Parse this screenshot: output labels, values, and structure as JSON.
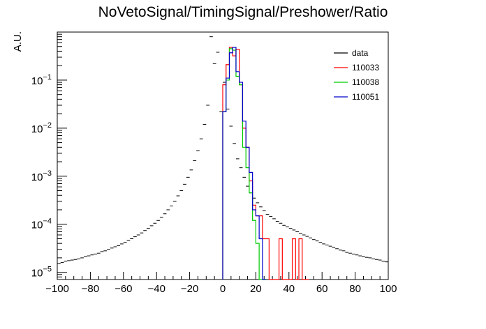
{
  "chart_data": {
    "type": "histogram-step",
    "title": "NoVetoSignal/TimingSignal/Preshower/Ratio",
    "ylabel": "A.U.",
    "xlabel": "",
    "xlim": [
      -100,
      100
    ],
    "ylim_log10": [
      -5.15,
      0.0
    ],
    "yscale": "log",
    "grid": false,
    "legend_placement": "top-right",
    "x_tick_labels": [
      "−100",
      "−80",
      "−60",
      "−40",
      "−20",
      "0",
      "20",
      "40",
      "60",
      "80",
      "100"
    ],
    "y_tick_labels": [
      {
        "base": "10",
        "exp": "−1"
      },
      {
        "base": "10",
        "exp": "−2"
      },
      {
        "base": "10",
        "exp": "−3"
      },
      {
        "base": "10",
        "exp": "−4"
      },
      {
        "base": "10",
        "exp": "−5"
      }
    ],
    "bin_width": 2,
    "series": [
      {
        "name": "data",
        "style": "points-with-xerror",
        "color": "#000000",
        "x": [
          -99,
          -97,
          -95,
          -93,
          -91,
          -89,
          -87,
          -85,
          -83,
          -81,
          -79,
          -77,
          -75,
          -73,
          -71,
          -69,
          -67,
          -65,
          -63,
          -61,
          -59,
          -57,
          -55,
          -53,
          -51,
          -49,
          -47,
          -45,
          -43,
          -41,
          -39,
          -37,
          -35,
          -33,
          -31,
          -29,
          -27,
          -25,
          -23,
          -21,
          -19,
          -17,
          -15,
          -13,
          -11,
          -9,
          -7,
          -5,
          -3,
          -1,
          1,
          3,
          5,
          7,
          9,
          11,
          13,
          15,
          17,
          19,
          21,
          23,
          25,
          27,
          29,
          31,
          33,
          35,
          37,
          39,
          41,
          43,
          45,
          47,
          49,
          51,
          53,
          55,
          57,
          59,
          61,
          63,
          65,
          67,
          69,
          71,
          73,
          75,
          77,
          79,
          81,
          83,
          85,
          87,
          89,
          91,
          93,
          95,
          97,
          99
        ],
        "y": [
          1.5e-05,
          1.6e-05,
          1.7e-05,
          1.75e-05,
          1.8e-05,
          1.85e-05,
          1.9e-05,
          2e-05,
          2.1e-05,
          2.2e-05,
          2.3e-05,
          2.4e-05,
          2.5e-05,
          2.7e-05,
          2.8e-05,
          3e-05,
          3.2e-05,
          3.4e-05,
          3.6e-05,
          3.9e-05,
          4.2e-05,
          4.6e-05,
          5e-05,
          5.5e-05,
          6e-05,
          6.6e-05,
          7.4e-05,
          8.2e-05,
          9.3e-05,
          0.000105,
          0.00012,
          0.00014,
          0.000165,
          0.0002,
          0.00024,
          0.0003,
          0.00039,
          0.0005,
          0.00068,
          0.00095,
          0.00135,
          0.0021,
          0.0034,
          0.006,
          0.012,
          0.03,
          0.8,
          0.22,
          0.38,
          0.022,
          0.09,
          0.025,
          0.011,
          0.0048,
          0.0023,
          0.0015,
          0.00095,
          0.00062,
          0.00045,
          0.00035,
          0.00028,
          0.00023,
          0.00019,
          0.00016,
          0.000145,
          0.00013,
          0.000115,
          0.000105,
          9.5e-05,
          8.8e-05,
          8.2e-05,
          7.6e-05,
          7e-05,
          6.5e-05,
          6e-05,
          5.6e-05,
          5.2e-05,
          4.8e-05,
          4.5e-05,
          4.2e-05,
          3.9e-05,
          3.7e-05,
          3.5e-05,
          3.3e-05,
          3.1e-05,
          2.9e-05,
          2.8e-05,
          2.6e-05,
          2.5e-05,
          2.4e-05,
          2.3e-05,
          2.2e-05,
          2.1e-05,
          2.05e-05,
          2e-05,
          1.9e-05,
          1.85e-05,
          1.8e-05,
          1.7e-05,
          1.65e-05
        ]
      },
      {
        "name": "110033",
        "style": "step",
        "color": "#ff0000",
        "x": [
          0,
          2,
          4,
          6,
          8,
          10,
          12,
          14,
          16,
          18,
          20,
          22,
          24,
          26,
          28,
          30,
          32,
          34,
          36,
          38,
          40,
          42,
          44,
          46,
          48,
          50
        ],
        "y": [
          0.08,
          0.21,
          0.48,
          0.32,
          0.44,
          0.08,
          0.01,
          0.004,
          0.0008,
          0.00025,
          0.00015,
          0.00015,
          5e-05,
          5e-05,
          1e-06,
          1e-06,
          1e-06,
          5e-05,
          1e-06,
          1e-06,
          1e-06,
          5e-05,
          1e-06,
          5e-05,
          1e-06,
          1e-06
        ]
      },
      {
        "name": "110038",
        "style": "step",
        "color": "#00cc00",
        "x": [
          0,
          2,
          4,
          6,
          8,
          10,
          12,
          14,
          16,
          18,
          20,
          22,
          24
        ],
        "y": [
          0.022,
          0.1,
          0.45,
          0.42,
          0.12,
          0.08,
          0.004,
          0.0015,
          0.00045,
          0.00012,
          4e-05,
          1e-06,
          1e-06
        ]
      },
      {
        "name": "110051",
        "style": "step",
        "color": "#0000cc",
        "x": [
          0,
          2,
          4,
          6,
          8,
          10,
          12,
          14,
          16,
          18,
          20,
          22,
          24
        ],
        "y": [
          0.022,
          0.11,
          0.37,
          0.48,
          0.15,
          0.09,
          0.014,
          0.004,
          0.0012,
          0.0002,
          0.00015,
          5e-05,
          1e-06
        ]
      }
    ]
  }
}
